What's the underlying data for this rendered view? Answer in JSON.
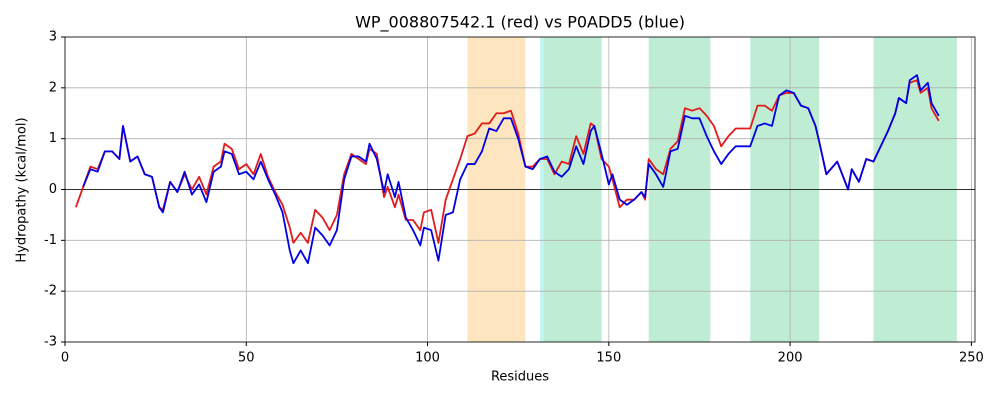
{
  "chart_data": {
    "type": "line",
    "title": "WP_008807542.1 (red) vs P0ADD5 (blue)",
    "xlabel": "Residues",
    "ylabel": "Hydropathy (kcal/mol)",
    "xlim": [
      0,
      251
    ],
    "ylim": [
      -3,
      3
    ],
    "xticks": [
      0,
      50,
      100,
      150,
      200,
      250
    ],
    "yticks": [
      -3,
      -2,
      -1,
      0,
      1,
      2,
      3
    ],
    "grid": true,
    "hline": 0,
    "spans": [
      {
        "start": 111,
        "end": 127,
        "color": "#fde5c0"
      },
      {
        "start": 131,
        "end": 132,
        "color": "#c6f4f0"
      },
      {
        "start": 132,
        "end": 148,
        "color": "#bfedd3"
      },
      {
        "start": 161,
        "end": 178,
        "color": "#bfedd3"
      },
      {
        "start": 189,
        "end": 208,
        "color": "#bfedd3"
      },
      {
        "start": 223,
        "end": 246,
        "color": "#bfedd3"
      }
    ],
    "x": [
      3,
      5,
      7,
      9,
      11,
      13,
      15,
      16,
      18,
      20,
      22,
      24,
      26,
      27,
      29,
      31,
      33,
      35,
      37,
      39,
      41,
      43,
      44,
      46,
      48,
      50,
      52,
      54,
      56,
      58,
      60,
      62,
      63,
      65,
      67,
      69,
      71,
      73,
      75,
      77,
      79,
      81,
      83,
      84,
      86,
      88,
      89,
      91,
      92,
      94,
      96,
      98,
      99,
      101,
      103,
      105,
      107,
      109,
      111,
      113,
      115,
      117,
      119,
      121,
      123,
      125,
      127,
      129,
      131,
      133,
      135,
      137,
      139,
      141,
      143,
      145,
      146,
      148,
      150,
      151,
      153,
      155,
      157,
      159,
      160,
      161,
      163,
      165,
      167,
      169,
      171,
      173,
      175,
      177,
      179,
      181,
      183,
      185,
      187,
      189,
      191,
      193,
      195,
      197,
      199,
      201,
      203,
      205,
      207,
      208,
      210,
      213,
      216,
      217,
      219,
      221,
      223,
      225,
      227,
      229,
      230,
      232,
      233,
      235,
      236,
      238,
      239,
      241
    ],
    "series": [
      {
        "color": "#e31a1c",
        "values": [
          -0.35,
          0.05,
          0.45,
          0.4,
          0.75,
          0.75,
          0.6,
          1.25,
          0.55,
          0.65,
          0.3,
          0.25,
          -0.35,
          -0.4,
          0.15,
          -0.05,
          0.3,
          0.0,
          0.25,
          -0.1,
          0.45,
          0.55,
          0.9,
          0.8,
          0.4,
          0.5,
          0.3,
          0.7,
          0.25,
          -0.05,
          -0.3,
          -0.75,
          -1.05,
          -0.85,
          -1.05,
          -0.4,
          -0.55,
          -0.8,
          -0.5,
          0.3,
          0.7,
          0.6,
          0.5,
          0.8,
          0.7,
          -0.15,
          0.05,
          -0.35,
          -0.1,
          -0.6,
          -0.6,
          -0.8,
          -0.45,
          -0.4,
          -1.05,
          -0.2,
          0.2,
          0.6,
          1.05,
          1.1,
          1.3,
          1.3,
          1.5,
          1.5,
          1.55,
          1.1,
          0.45,
          0.45,
          0.6,
          0.6,
          0.3,
          0.55,
          0.5,
          1.05,
          0.7,
          1.3,
          1.25,
          0.6,
          0.45,
          0.2,
          -0.35,
          -0.2,
          -0.2,
          -0.05,
          -0.2,
          0.6,
          0.4,
          0.3,
          0.8,
          0.95,
          1.6,
          1.55,
          1.6,
          1.45,
          1.25,
          0.85,
          1.05,
          1.2,
          1.2,
          1.2,
          1.65,
          1.65,
          1.55,
          1.85,
          1.9,
          1.9,
          1.65,
          1.6,
          1.25,
          0.95,
          0.3,
          0.55,
          0.0,
          0.4,
          0.15,
          0.6,
          0.55,
          0.85,
          1.15,
          1.5,
          1.8,
          1.7,
          2.1,
          2.15,
          1.9,
          2.0,
          1.6,
          1.35
        ]
      },
      {
        "color": "#0000e6",
        "values": [
          null,
          0.05,
          0.4,
          0.35,
          0.75,
          0.75,
          0.6,
          1.25,
          0.55,
          0.65,
          0.3,
          0.25,
          -0.35,
          -0.45,
          0.15,
          -0.05,
          0.35,
          -0.1,
          0.1,
          -0.25,
          0.35,
          0.45,
          0.75,
          0.7,
          0.3,
          0.35,
          0.2,
          0.55,
          0.2,
          -0.1,
          -0.45,
          -1.2,
          -1.45,
          -1.2,
          -1.45,
          -0.75,
          -0.9,
          -1.1,
          -0.8,
          0.2,
          0.65,
          0.65,
          0.55,
          0.9,
          0.6,
          -0.05,
          0.3,
          -0.15,
          0.15,
          -0.55,
          -0.8,
          -1.1,
          -0.75,
          -0.8,
          -1.4,
          -0.5,
          -0.45,
          0.2,
          0.5,
          0.5,
          0.75,
          1.2,
          1.15,
          1.4,
          1.4,
          1.0,
          0.45,
          0.4,
          0.6,
          0.65,
          0.35,
          0.25,
          0.4,
          0.85,
          0.5,
          1.15,
          1.25,
          0.7,
          0.1,
          0.3,
          -0.2,
          -0.3,
          -0.2,
          -0.05,
          -0.15,
          0.5,
          0.3,
          0.05,
          0.75,
          0.8,
          1.45,
          1.4,
          1.4,
          1.05,
          0.75,
          0.5,
          0.7,
          0.85,
          0.85,
          0.85,
          1.25,
          1.3,
          1.25,
          1.85,
          1.95,
          1.9,
          1.65,
          1.6,
          1.25,
          0.95,
          0.3,
          0.55,
          0.0,
          0.4,
          0.15,
          0.6,
          0.55,
          0.85,
          1.15,
          1.5,
          1.8,
          1.7,
          2.15,
          2.25,
          1.95,
          2.1,
          1.7,
          1.45
        ]
      }
    ]
  }
}
